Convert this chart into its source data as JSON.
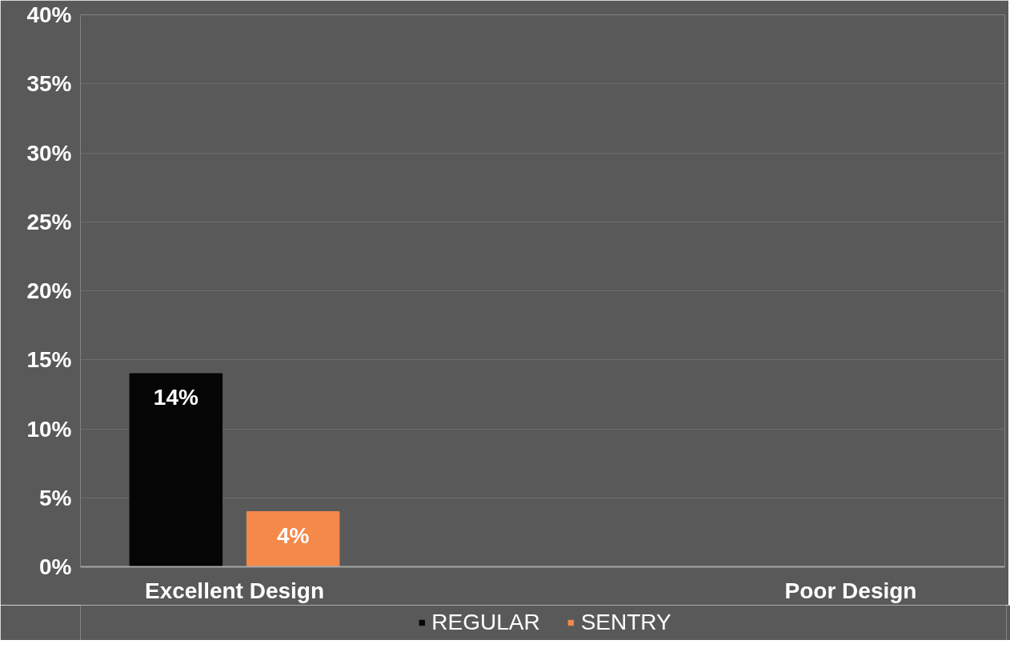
{
  "chart_data": {
    "type": "bar",
    "categories": [
      "Excellent Design",
      null,
      "Poor Design"
    ],
    "series": [
      {
        "name": "REGULAR",
        "color": "#050505",
        "values": [
          14,
          null,
          null
        ],
        "value_labels": [
          "14%",
          null,
          null
        ]
      },
      {
        "name": "SENTRY",
        "color": "#f4894a",
        "values": [
          4,
          null,
          null
        ],
        "value_labels": [
          "4%",
          null,
          null
        ]
      }
    ],
    "ylim": [
      0,
      40
    ],
    "yticks": [
      {
        "value": 0,
        "label": "0%"
      },
      {
        "value": 5,
        "label": "5%"
      },
      {
        "value": 10,
        "label": "10%"
      },
      {
        "value": 15,
        "label": "15%"
      },
      {
        "value": 20,
        "label": "20%"
      },
      {
        "value": 25,
        "label": "25%"
      },
      {
        "value": 30,
        "label": "30%"
      },
      {
        "value": 35,
        "label": "35%"
      },
      {
        "value": 40,
        "label": "40%"
      }
    ],
    "grid": "y",
    "legend": "bottom"
  }
}
